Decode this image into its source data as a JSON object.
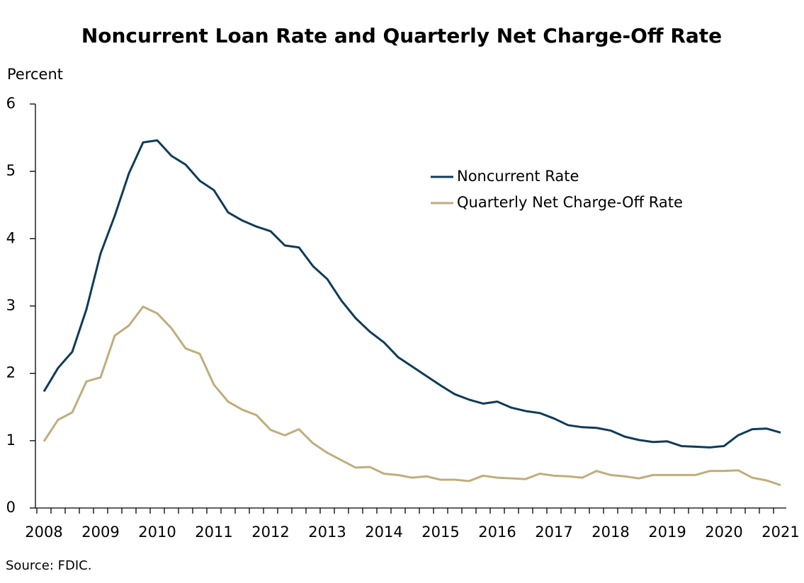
{
  "chart_data": {
    "type": "line",
    "title": "Noncurrent Loan Rate and Quarterly Net Charge-Off Rate",
    "y_label": "Percent",
    "source": "Source: FDIC.",
    "categories": [
      "2008",
      null,
      null,
      null,
      "2009",
      null,
      null,
      null,
      "2010",
      null,
      null,
      null,
      "2011",
      null,
      null,
      null,
      "2012",
      null,
      null,
      null,
      "2013",
      null,
      null,
      null,
      "2014",
      null,
      null,
      null,
      "2015",
      null,
      null,
      null,
      "2016",
      null,
      null,
      null,
      "2017",
      null,
      null,
      null,
      "2018",
      null,
      null,
      null,
      "2019",
      null,
      null,
      null,
      "2020",
      null,
      null,
      null,
      "2021"
    ],
    "series": [
      {
        "name": "Noncurrent Rate",
        "color": "#0f3b5a",
        "values": [
          1.73,
          2.08,
          2.32,
          2.95,
          3.78,
          4.34,
          4.97,
          5.43,
          5.46,
          5.23,
          5.1,
          4.86,
          4.72,
          4.39,
          4.27,
          4.18,
          4.11,
          3.9,
          3.87,
          3.59,
          3.4,
          3.08,
          2.82,
          2.62,
          2.46,
          2.24,
          2.1,
          1.96,
          1.82,
          1.69,
          1.61,
          1.55,
          1.58,
          1.49,
          1.44,
          1.41,
          1.33,
          1.23,
          1.2,
          1.19,
          1.15,
          1.06,
          1.01,
          0.98,
          0.99,
          0.92,
          0.91,
          0.9,
          0.92,
          1.08,
          1.17,
          1.18,
          1.12
        ]
      },
      {
        "name": "Quarterly Net Charge-Off Rate",
        "color": "#c0ad7c",
        "values": [
          0.99,
          1.31,
          1.42,
          1.88,
          1.94,
          2.56,
          2.71,
          2.99,
          2.89,
          2.67,
          2.37,
          2.29,
          1.83,
          1.58,
          1.46,
          1.38,
          1.16,
          1.08,
          1.17,
          0.96,
          0.82,
          0.71,
          0.6,
          0.61,
          0.51,
          0.49,
          0.45,
          0.47,
          0.42,
          0.42,
          0.4,
          0.48,
          0.45,
          0.44,
          0.43,
          0.51,
          0.48,
          0.47,
          0.45,
          0.55,
          0.49,
          0.47,
          0.44,
          0.49,
          0.49,
          0.49,
          0.49,
          0.55,
          0.55,
          0.56,
          0.45,
          0.41,
          0.34
        ]
      }
    ],
    "ylim": [
      0,
      6
    ],
    "yticks": [
      0,
      1,
      2,
      3,
      4,
      5,
      6
    ]
  }
}
